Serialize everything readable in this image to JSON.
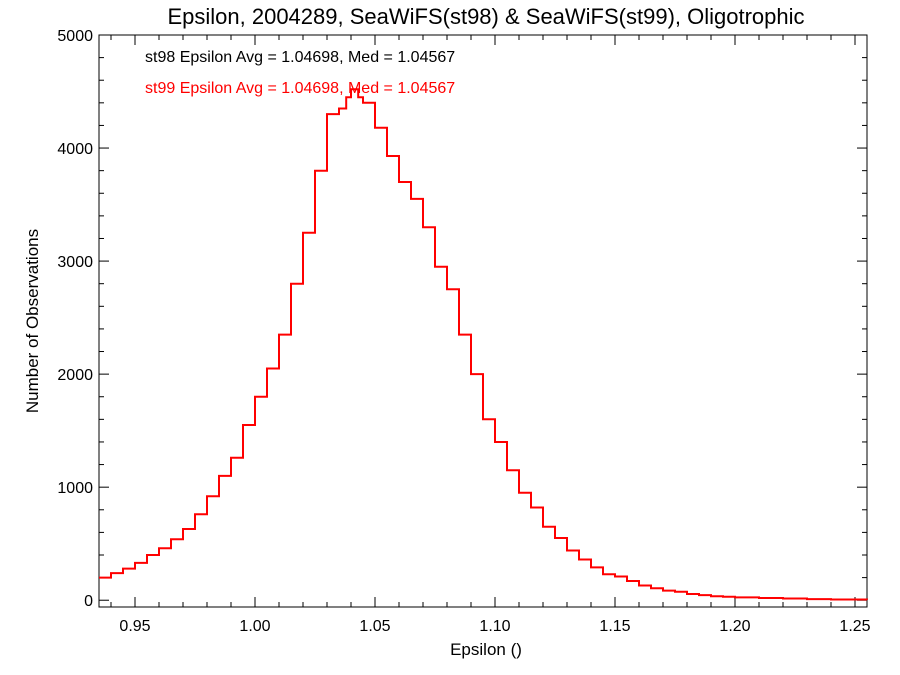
{
  "chart_data": {
    "type": "line",
    "title": "Epsilon, 2004289, SeaWiFS(st98) & SeaWiFS(st99), Oligotrophic",
    "xlabel": "Epsilon ()",
    "ylabel": "Number of Observations",
    "xlim": [
      0.935,
      1.255
    ],
    "ylim": [
      -60,
      5000
    ],
    "x_ticks": [
      {
        "value": 0.95,
        "label": "0.95"
      },
      {
        "value": 1.0,
        "label": "1.00"
      },
      {
        "value": 1.05,
        "label": "1.05"
      },
      {
        "value": 1.1,
        "label": "1.10"
      },
      {
        "value": 1.15,
        "label": "1.15"
      },
      {
        "value": 1.2,
        "label": "1.20"
      },
      {
        "value": 1.25,
        "label": "1.25"
      }
    ],
    "y_ticks": [
      {
        "value": 0,
        "label": "0"
      },
      {
        "value": 1000,
        "label": "1000"
      },
      {
        "value": 2000,
        "label": "2000"
      },
      {
        "value": 3000,
        "label": "3000"
      },
      {
        "value": 4000,
        "label": "4000"
      },
      {
        "value": 5000,
        "label": "5000"
      }
    ],
    "grid": false,
    "step": "histogram",
    "annotations": [
      {
        "text": "st98 Epsilon Avg = 1.04698, Med = 1.04567",
        "color": "#000000"
      },
      {
        "text": "st99 Epsilon Avg = 1.04698, Med = 1.04567",
        "color": "#ff0000"
      }
    ],
    "series": [
      {
        "color": "#ff0000",
        "x": [
          0.935,
          0.94,
          0.945,
          0.95,
          0.955,
          0.96,
          0.965,
          0.97,
          0.975,
          0.98,
          0.985,
          0.99,
          0.995,
          1.0,
          1.005,
          1.01,
          1.015,
          1.02,
          1.025,
          1.03,
          1.035,
          1.038,
          1.04,
          1.043,
          1.045,
          1.05,
          1.055,
          1.06,
          1.065,
          1.07,
          1.075,
          1.08,
          1.085,
          1.09,
          1.095,
          1.1,
          1.105,
          1.11,
          1.115,
          1.12,
          1.125,
          1.13,
          1.135,
          1.14,
          1.145,
          1.15,
          1.155,
          1.16,
          1.165,
          1.17,
          1.175,
          1.18,
          1.185,
          1.19,
          1.195,
          1.2,
          1.21,
          1.22,
          1.23,
          1.24,
          1.255
        ],
        "y": [
          200,
          240,
          280,
          330,
          400,
          460,
          540,
          630,
          760,
          920,
          1100,
          1260,
          1550,
          1800,
          2050,
          2350,
          2800,
          3250,
          3800,
          4300,
          4350,
          4450,
          4520,
          4450,
          4400,
          4180,
          3930,
          3700,
          3550,
          3300,
          2950,
          2750,
          2350,
          2000,
          1600,
          1400,
          1150,
          950,
          820,
          650,
          550,
          440,
          360,
          290,
          230,
          210,
          170,
          130,
          105,
          85,
          75,
          55,
          45,
          35,
          30,
          25,
          20,
          15,
          10,
          6,
          5
        ]
      }
    ]
  }
}
